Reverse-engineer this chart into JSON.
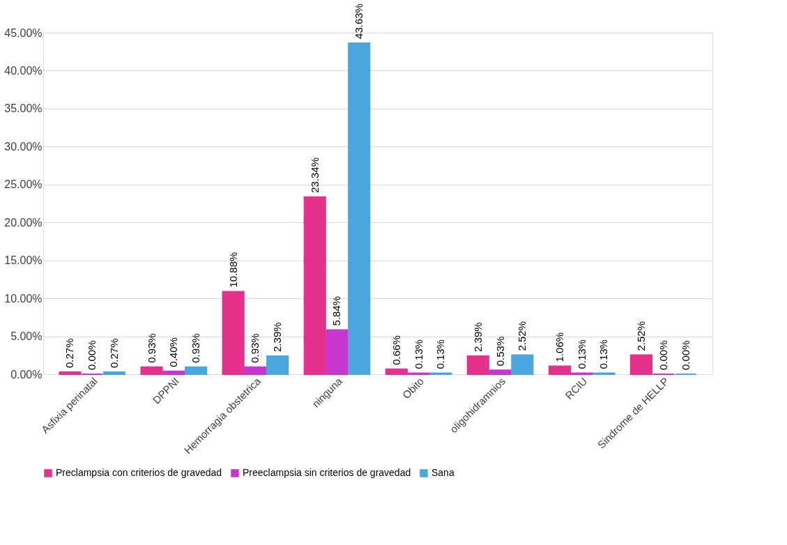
{
  "chart_data": {
    "type": "bar",
    "categories": [
      "Asfixia perinatal",
      "DPPNI",
      "Hemorragia obstetrica",
      "ninguna",
      "Obito",
      "oligohidramnios",
      "RCIU",
      "Sindrome de HELLP"
    ],
    "series": [
      {
        "name": "Preclampsia con criterios de gravedad",
        "color": "#e3318c",
        "values": [
          0.27,
          0.93,
          10.88,
          23.34,
          0.66,
          2.39,
          1.06,
          2.52
        ],
        "value_labels": [
          "0.27%",
          "0.93%",
          "10.88%",
          "23.34%",
          "0.66%",
          "2.39%",
          "1.06%",
          "2.52%"
        ]
      },
      {
        "name": "Preeclampsia sin criterios de gravedad",
        "color": "#c737d0",
        "values": [
          0.0,
          0.4,
          0.93,
          5.84,
          0.13,
          0.53,
          0.13,
          0.0
        ],
        "value_labels": [
          "0.00%",
          "0.40%",
          "0.93%",
          "5.84%",
          "0.13%",
          "0.53%",
          "0.13%",
          "0.00%"
        ]
      },
      {
        "name": "Sana",
        "color": "#4ba6dd",
        "values": [
          0.27,
          0.93,
          2.39,
          43.63,
          0.13,
          2.52,
          0.13,
          0.0
        ],
        "value_labels": [
          "0.27%",
          "0.93%",
          "2.39%",
          "43.63%",
          "0.13%",
          "2.52%",
          "0.13%",
          "0.00%"
        ]
      }
    ],
    "ylim": [
      0,
      45
    ],
    "yticks": [
      {
        "value": 0,
        "label": "0.00%"
      },
      {
        "value": 5,
        "label": "5.00%"
      },
      {
        "value": 10,
        "label": "10.00%"
      },
      {
        "value": 15,
        "label": "15.00%"
      },
      {
        "value": 20,
        "label": "20.00%"
      },
      {
        "value": 25,
        "label": "25.00%"
      },
      {
        "value": 30,
        "label": "30.00%"
      },
      {
        "value": 35,
        "label": "35.00%"
      },
      {
        "value": 40,
        "label": "40.00%"
      },
      {
        "value": 45,
        "label": "45.00%"
      }
    ],
    "grid": "y",
    "legend": "bottom"
  }
}
